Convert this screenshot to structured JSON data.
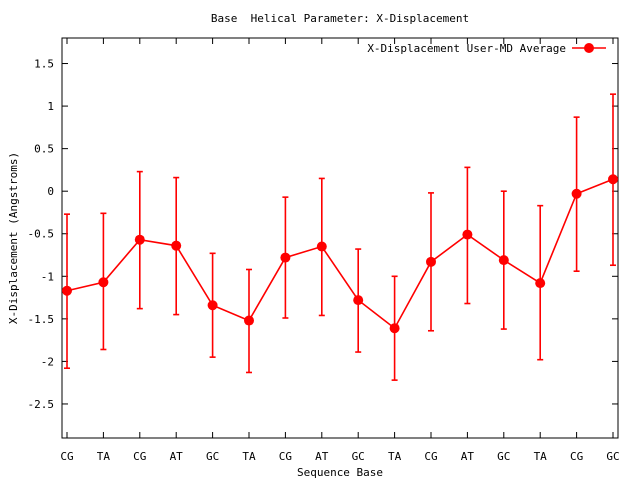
{
  "chart_data": {
    "type": "line",
    "title": "Base  Helical Parameter: X-Displacement",
    "xlabel": "Sequence Base",
    "ylabel": "X-Displacement (Angstroms)",
    "categories": [
      "CG",
      "TA",
      "CG",
      "AT",
      "GC",
      "TA",
      "CG",
      "AT",
      "GC",
      "TA",
      "CG",
      "AT",
      "GC",
      "TA",
      "CG",
      "GC"
    ],
    "ylim": [
      -2.9,
      1.8
    ],
    "yticks": [
      {
        "value": 1.5,
        "label": "1.5"
      },
      {
        "value": 1,
        "label": "1"
      },
      {
        "value": 0.5,
        "label": "0.5"
      },
      {
        "value": 0,
        "label": "0"
      },
      {
        "value": -0.5,
        "label": "-0.5"
      },
      {
        "value": -1,
        "label": "-1"
      },
      {
        "value": -1.5,
        "label": "-1.5"
      },
      {
        "value": -2,
        "label": "-2"
      },
      {
        "value": -2.5,
        "label": "-2.5"
      }
    ],
    "grid": false,
    "legend_position": "top-right",
    "series": [
      {
        "name": "X-Displacement User-MD Average",
        "color": "#ff0000",
        "values": [
          -1.17,
          -1.07,
          -0.57,
          -0.64,
          -1.34,
          -1.52,
          -0.78,
          -0.65,
          -1.28,
          -1.61,
          -0.83,
          -0.51,
          -0.81,
          -1.08,
          -0.03,
          0.14
        ],
        "err_low": [
          -2.08,
          -1.86,
          -1.38,
          -1.45,
          -1.95,
          -2.13,
          -1.49,
          -1.46,
          -1.89,
          -2.22,
          -1.64,
          -1.32,
          -1.62,
          -1.98,
          -0.94,
          -0.87
        ],
        "err_high": [
          -0.27,
          -0.26,
          0.23,
          0.16,
          -0.73,
          -0.92,
          -0.07,
          0.15,
          -0.68,
          -1.0,
          -0.02,
          0.28,
          0.0,
          -0.17,
          0.87,
          1.14
        ]
      }
    ]
  }
}
